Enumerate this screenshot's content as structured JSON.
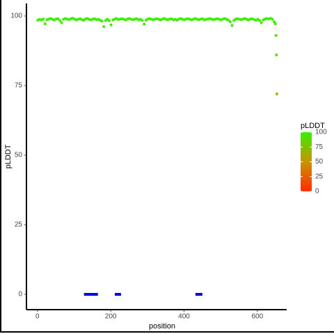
{
  "chart_data": {
    "type": "scatter",
    "x_label": "position",
    "y_label": "pLDDT",
    "xlim": [
      -30,
      680
    ],
    "ylim": [
      -5.5,
      104.5
    ],
    "xticks": [
      0,
      200,
      400,
      600
    ],
    "yticks": [
      0,
      25,
      50,
      75,
      100
    ],
    "colorscale": [
      "#ff2a00",
      "#c89400",
      "#38f000"
    ],
    "colorbar": {
      "title": "pLDDT",
      "lim": [
        0,
        100
      ],
      "ticks": [
        0,
        25,
        50,
        75,
        100
      ]
    },
    "x": [
      1,
      6,
      11,
      16,
      21,
      26,
      31,
      36,
      41,
      46,
      51,
      56,
      61,
      66,
      71,
      76,
      81,
      86,
      91,
      96,
      101,
      106,
      111,
      116,
      121,
      126,
      131,
      136,
      141,
      146,
      151,
      156,
      161,
      166,
      171,
      176,
      181,
      186,
      191,
      196,
      201,
      206,
      211,
      216,
      221,
      226,
      231,
      236,
      241,
      246,
      251,
      256,
      261,
      266,
      271,
      276,
      281,
      286,
      291,
      296,
      301,
      306,
      311,
      316,
      321,
      326,
      331,
      336,
      341,
      346,
      351,
      356,
      361,
      366,
      371,
      376,
      381,
      386,
      391,
      396,
      401,
      406,
      411,
      416,
      421,
      426,
      431,
      436,
      441,
      446,
      451,
      456,
      461,
      466,
      471,
      476,
      481,
      486,
      491,
      496,
      501,
      506,
      511,
      516,
      521,
      526,
      531,
      536,
      541,
      546,
      551,
      556,
      561,
      566,
      571,
      576,
      581,
      586,
      591,
      596,
      601,
      606,
      611,
      616,
      621,
      626,
      631,
      636,
      641,
      646,
      649,
      651,
      652,
      653
    ],
    "values": [
      98.5,
      98.8,
      98.6,
      98.9,
      97.2,
      98.7,
      98.9,
      99.1,
      98.8,
      98.6,
      98.9,
      99.0,
      98.4,
      97.6,
      98.8,
      99.1,
      98.9,
      98.7,
      99.0,
      99.2,
      98.9,
      98.6,
      98.8,
      99.0,
      98.7,
      98.5,
      98.9,
      99.1,
      98.8,
      98.6,
      98.9,
      99.0,
      98.7,
      98.8,
      98.5,
      98.2,
      96.2,
      98.4,
      98.8,
      98.3,
      96.8,
      98.6,
      98.9,
      99.1,
      98.7,
      98.9,
      99.0,
      98.8,
      98.6,
      98.9,
      99.1,
      98.8,
      98.7,
      98.9,
      99.0,
      98.6,
      98.8,
      98.4,
      97.1,
      98.5,
      98.9,
      99.1,
      98.8,
      98.7,
      98.9,
      99.0,
      98.8,
      98.6,
      98.9,
      99.1,
      98.8,
      98.7,
      98.9,
      99.0,
      98.6,
      98.8,
      98.5,
      98.9,
      99.1,
      98.8,
      98.7,
      98.9,
      99.0,
      98.8,
      98.6,
      98.9,
      99.1,
      98.8,
      98.7,
      98.9,
      99.0,
      98.6,
      98.8,
      98.9,
      99.1,
      98.8,
      98.7,
      98.9,
      99.0,
      98.8,
      98.6,
      98.9,
      99.1,
      98.8,
      98.5,
      97.9,
      96.6,
      98.4,
      98.9,
      99.0,
      98.8,
      98.7,
      98.9,
      99.1,
      98.8,
      98.6,
      98.9,
      99.0,
      98.7,
      98.5,
      98.8,
      98.4,
      97.6,
      98.6,
      98.9,
      99.1,
      98.9,
      99.2,
      98.8,
      97.9,
      97.2,
      93.0,
      86.0,
      72.0
    ],
    "segments": {
      "color": "#0000ee",
      "y": 0,
      "start": [
        127,
        211,
        431
      ],
      "end": [
        165,
        228,
        450
      ]
    }
  }
}
